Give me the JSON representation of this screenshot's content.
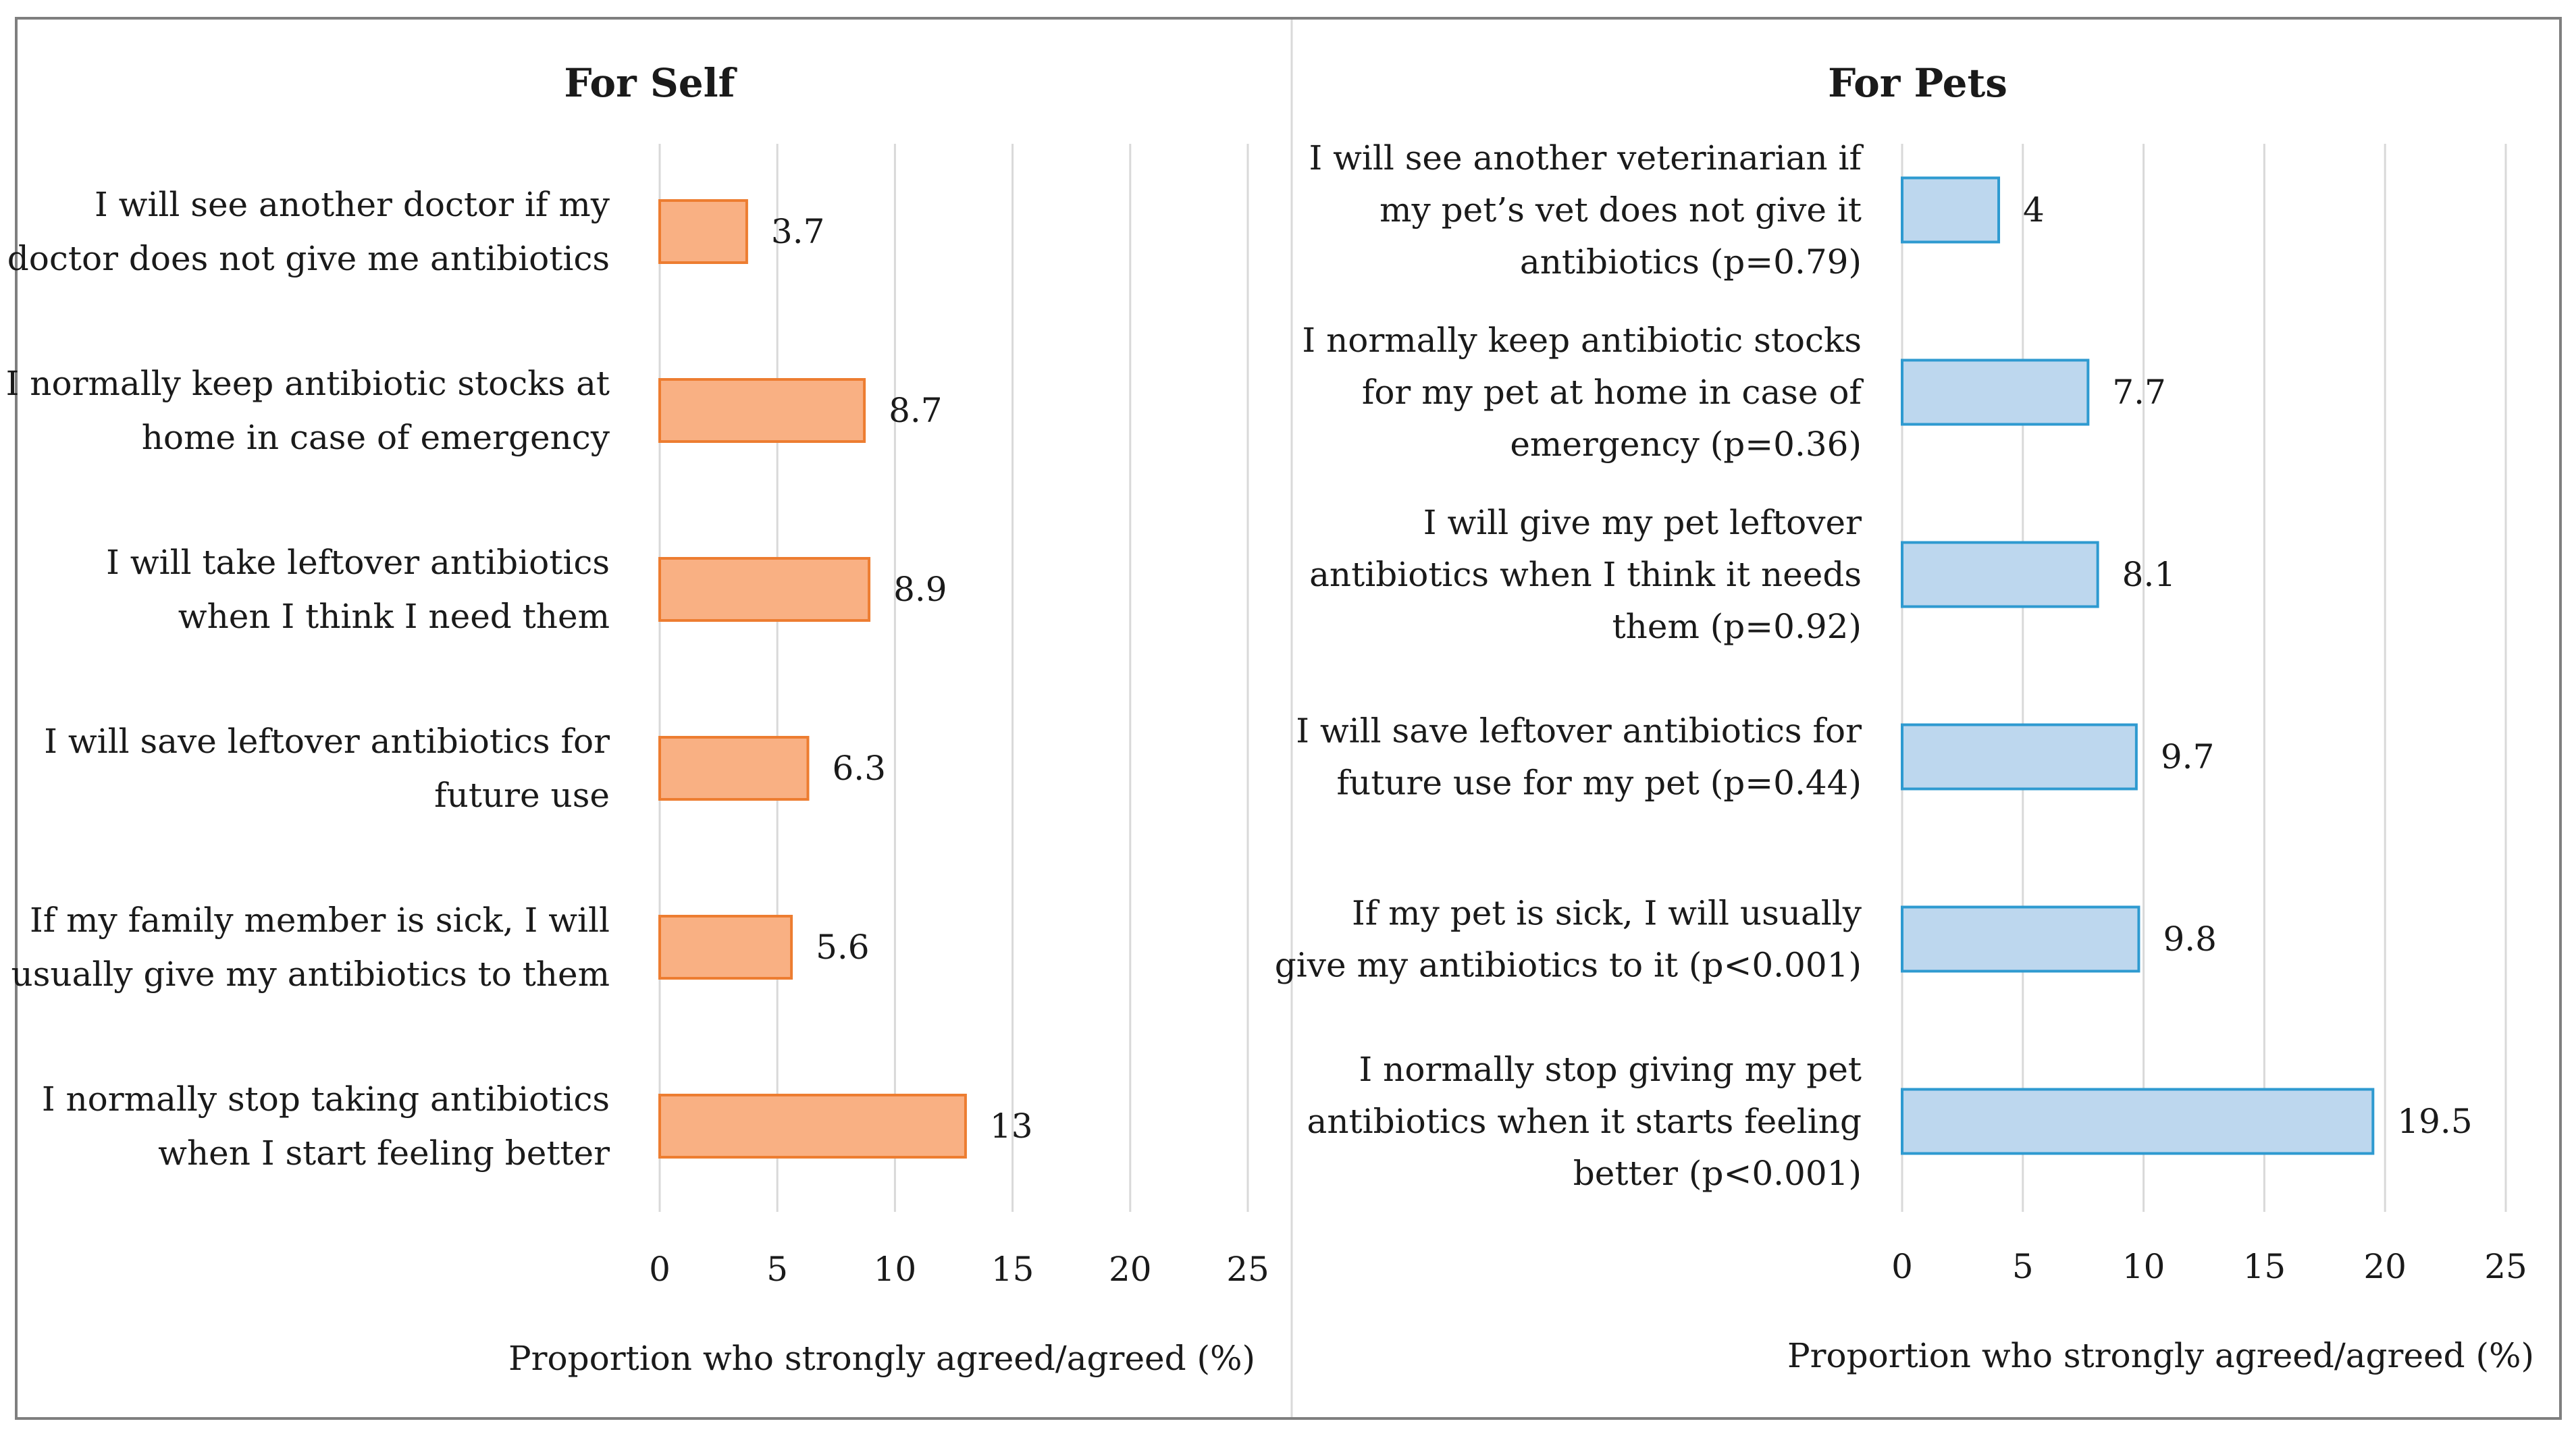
{
  "chart_data": [
    {
      "type": "bar",
      "orientation": "horizontal",
      "title": "For Self",
      "categories": [
        "I will see another doctor if my doctor does not give me antibiotics",
        "I normally keep antibiotic stocks at home in case of emergency",
        "I will take leftover antibiotics when I think I need them",
        "I will save leftover antibiotics for future use",
        "If my family member is sick, I will usually give my antibiotics to them",
        "I normally stop taking antibiotics when I start feeling better"
      ],
      "category_lines": [
        [
          "I will see another doctor if my",
          "doctor does not give me antibiotics"
        ],
        [
          "I normally keep antibiotic stocks at",
          "home in case of emergency"
        ],
        [
          "I will take leftover antibiotics",
          "when I think I need them"
        ],
        [
          "I will save leftover antibiotics for",
          "future use"
        ],
        [
          "If my family member is sick, I will",
          "usually give my antibiotics to them"
        ],
        [
          "I normally stop taking antibiotics",
          "when I start feeling better"
        ]
      ],
      "values": [
        3.7,
        8.7,
        8.9,
        6.3,
        5.6,
        13
      ],
      "value_labels": [
        "3.7",
        "8.7",
        "8.9",
        "6.3",
        "5.6",
        "13"
      ],
      "xlabel": "Proportion who strongly agreed/agreed (%)",
      "ylabel": "",
      "xlim": [
        0,
        25
      ],
      "ticks": [
        0,
        5,
        10,
        15,
        20,
        25
      ],
      "tick_labels": [
        "0",
        "5",
        "10",
        "15",
        "20",
        "25"
      ],
      "grid": true,
      "bar_fill": "#F9B083",
      "bar_stroke": "#ED7D31"
    },
    {
      "type": "bar",
      "orientation": "horizontal",
      "title": "For Pets",
      "categories": [
        "I will see another veterinarian if my pet’s vet does not give it antibiotics (p=0.79)",
        "I normally keep antibiotic stocks for my pet at home in case of emergency (p=0.36)",
        "I will give my pet leftover antibiotics when I think it needs them (p=0.92)",
        "I will save leftover antibiotics for future use for my pet (p=0.44)",
        "If my pet is sick, I will usually give my antibiotics to it (p<0.001)",
        "I normally stop giving my pet antibiotics when it starts feeling better (p<0.001)"
      ],
      "category_lines": [
        [
          "I will see another veterinarian if",
          "my pet’s vet does not give it",
          "antibiotics (p=0.79)"
        ],
        [
          "I normally keep antibiotic stocks",
          "for my pet at home in case of",
          "emergency (p=0.36)"
        ],
        [
          "I will give my pet leftover",
          "antibiotics when I think it needs",
          "them (p=0.92)"
        ],
        [
          "I will save leftover antibiotics for",
          "future use for my pet (p=0.44)"
        ],
        [
          "If my pet is sick, I will usually",
          "give my antibiotics to it (p<0.001)"
        ],
        [
          "I normally stop giving my pet",
          "antibiotics when it starts feeling",
          "better (p<0.001)"
        ]
      ],
      "values": [
        4,
        7.7,
        8.1,
        9.7,
        9.8,
        19.5
      ],
      "value_labels": [
        "4",
        "7.7",
        "8.1",
        "9.7",
        "9.8",
        "19.5"
      ],
      "xlabel": "Proportion who strongly agreed/agreed (%)",
      "ylabel": "",
      "xlim": [
        0,
        25
      ],
      "ticks": [
        0,
        5,
        10,
        15,
        20,
        25
      ],
      "tick_labels": [
        "0",
        "5",
        "10",
        "15",
        "20",
        "25"
      ],
      "grid": true,
      "bar_fill": "#BDD7EE",
      "bar_stroke": "#2E9AD0"
    }
  ],
  "colors": {
    "frame": "#7F7F7F",
    "divider": "#D9D9D9",
    "grid": "#D9D9D9",
    "text": "#1A1A1A"
  }
}
